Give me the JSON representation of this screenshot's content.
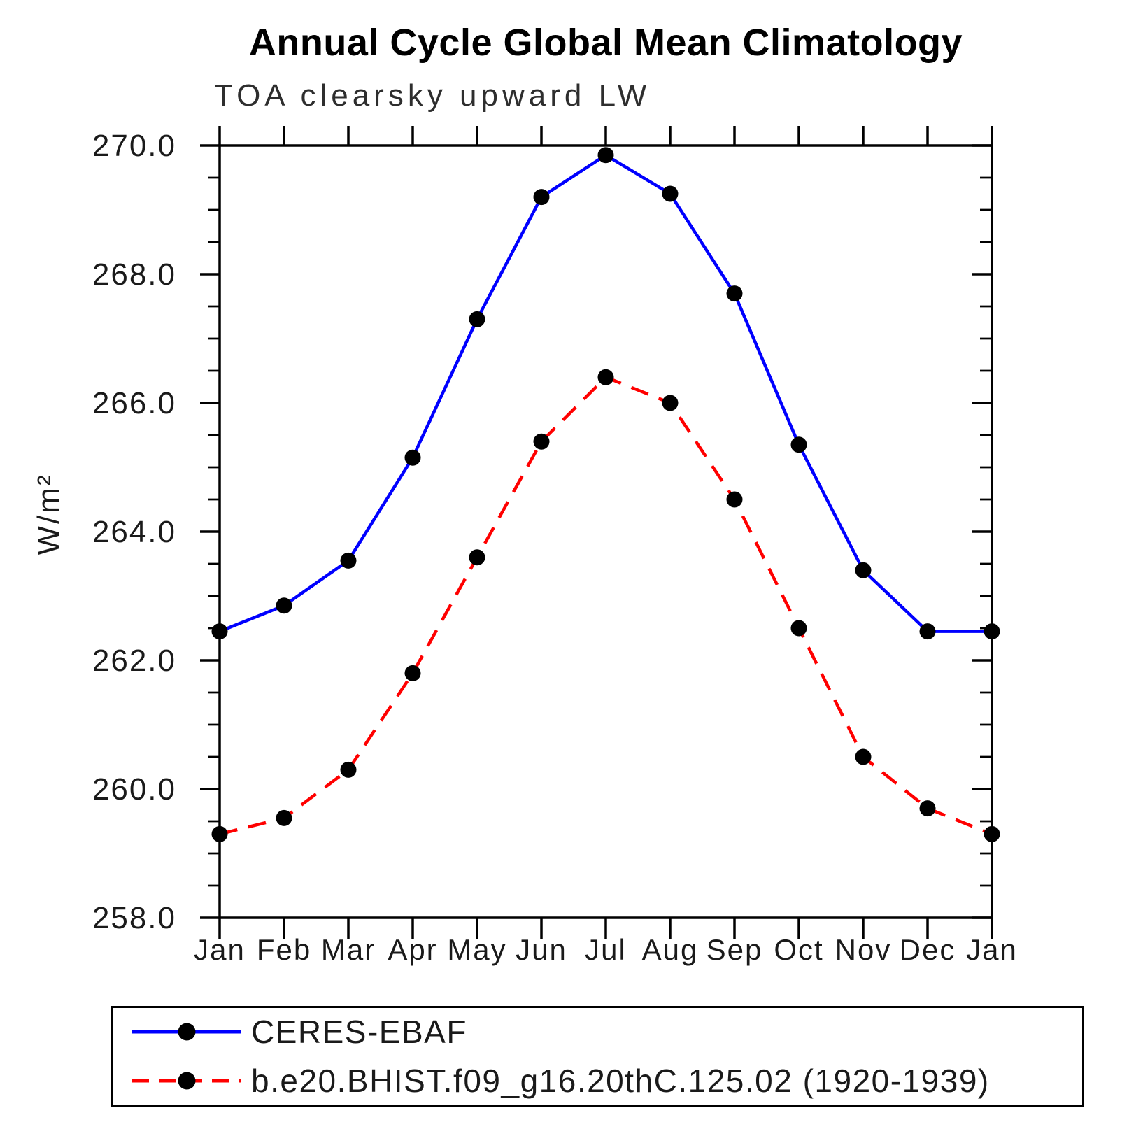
{
  "chart_data": {
    "type": "line",
    "title": "Annual Cycle Global Mean Climatology",
    "subtitle": "TOA clearsky upward LW",
    "ylabel": "W/m²",
    "x_categories": [
      "Jan",
      "Feb",
      "Mar",
      "Apr",
      "May",
      "Jun",
      "Jul",
      "Aug",
      "Sep",
      "Oct",
      "Nov",
      "Dec",
      "Jan"
    ],
    "ylim": [
      258.0,
      270.0
    ],
    "ytick_step": 2.0,
    "ytick_minor_step": 0.5,
    "ytick_labels": [
      "258.0",
      "260.0",
      "262.0",
      "264.0",
      "266.0",
      "268.0",
      "270.0"
    ],
    "grid": "off",
    "legend_position": "bottom-box",
    "axis_color": "#000000",
    "marker_color": "#000000",
    "series": [
      {
        "name": "CERES-EBAF",
        "color": "#0000ff",
        "line_style": "solid",
        "marker": "filled-circle",
        "values": [
          262.45,
          262.85,
          263.55,
          265.15,
          267.3,
          269.2,
          269.85,
          269.25,
          267.7,
          265.35,
          263.4,
          262.45,
          262.45
        ]
      },
      {
        "name": "b.e20.BHIST.f09_g16.20thC.125.02 (1920-1939)",
        "color": "#ff0000",
        "line_style": "dashed",
        "marker": "filled-circle",
        "values": [
          259.3,
          259.55,
          260.3,
          261.8,
          263.6,
          265.4,
          266.4,
          266.0,
          264.5,
          262.5,
          260.5,
          259.7,
          259.3
        ]
      }
    ]
  }
}
